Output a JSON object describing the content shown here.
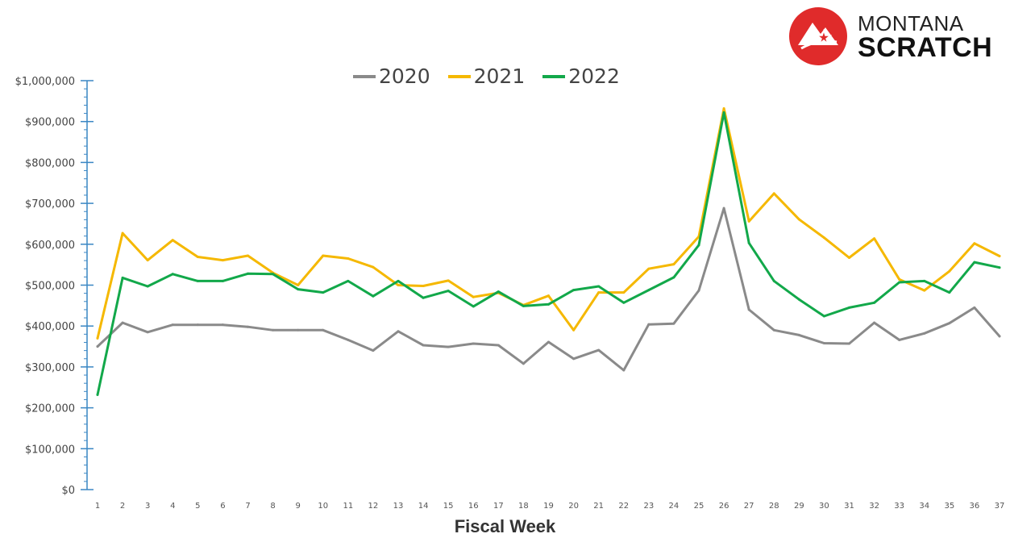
{
  "brand": {
    "logo_text_top": "MONTANA",
    "logo_text_bottom": "SCRATCH",
    "logo_color": "#e02b2b"
  },
  "chart_data": {
    "type": "line",
    "title": "",
    "xlabel": "Fiscal Week",
    "ylabel": "",
    "x": [
      1,
      2,
      3,
      4,
      5,
      6,
      7,
      8,
      9,
      10,
      11,
      12,
      13,
      14,
      15,
      16,
      17,
      18,
      19,
      20,
      21,
      22,
      23,
      24,
      25,
      26,
      27,
      28,
      29,
      30,
      31,
      32,
      33,
      34,
      35,
      36,
      37
    ],
    "ylim": [
      0,
      1000000
    ],
    "y_ticks": [
      0,
      100000,
      200000,
      300000,
      400000,
      500000,
      600000,
      700000,
      800000,
      900000,
      1000000
    ],
    "y_tick_labels": [
      "$0",
      "$100,000",
      "$200,000",
      "$300,000",
      "$400,000",
      "$500,000",
      "$600,000",
      "$700,000",
      "$800,000",
      "$900,000",
      "$1,000,000"
    ],
    "grid": false,
    "legend_position": "top",
    "series": [
      {
        "name": "2020",
        "color": "#8a8a8a",
        "values": [
          350000,
          408000,
          385000,
          403000,
          403000,
          403000,
          398000,
          390000,
          390000,
          390000,
          366000,
          340000,
          387000,
          353000,
          349000,
          357000,
          353000,
          308000,
          361000,
          320000,
          341000,
          292000,
          404000,
          406000,
          487000,
          688000,
          440000,
          390000,
          378000,
          358000,
          357000,
          408000,
          366000,
          382000,
          407000,
          445000,
          375000
        ]
      },
      {
        "name": "2021",
        "color": "#f5b800",
        "values": [
          370000,
          627000,
          561000,
          610000,
          569000,
          561000,
          572000,
          530000,
          500000,
          572000,
          565000,
          544000,
          500000,
          498000,
          511000,
          471000,
          481000,
          451000,
          474000,
          390000,
          482000,
          482000,
          540000,
          551000,
          619000,
          932000,
          656000,
          724000,
          661000,
          616000,
          567000,
          614000,
          514000,
          487000,
          534000,
          602000,
          571000
        ]
      },
      {
        "name": "2022",
        "color": "#12a84a",
        "values": [
          232000,
          518000,
          497000,
          527000,
          510000,
          510000,
          528000,
          527000,
          490000,
          482000,
          510000,
          473000,
          510000,
          469000,
          486000,
          448000,
          484000,
          449000,
          453000,
          488000,
          497000,
          457000,
          488000,
          519000,
          598000,
          922000,
          603000,
          510000,
          465000,
          424000,
          445000,
          457000,
          507000,
          510000,
          482000,
          556000,
          543000
        ]
      }
    ]
  }
}
